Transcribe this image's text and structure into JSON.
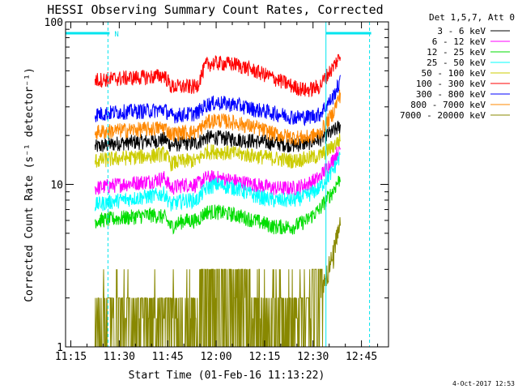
{
  "chart_data": {
    "type": "line",
    "title": "HESSI Observing Summary Count Rates, Corrected",
    "xlabel": "Start Time (01-Feb-16 11:13:22)",
    "ylabel": "Corrected Count Rate (s⁻¹ detector⁻¹)",
    "x_ticks": [
      "11:15",
      "11:30",
      "11:45",
      "12:00",
      "12:15",
      "12:30",
      "12:45"
    ],
    "x_tick_minutes": [
      15,
      30,
      45,
      60,
      75,
      90,
      105
    ],
    "xlim_minutes": [
      13.37,
      113.37
    ],
    "y_scale": "log",
    "ylim": [
      1,
      100
    ],
    "y_ticks": [
      1,
      10,
      100
    ],
    "legend_title": "Det 1,5,7, Att 0",
    "legend_position": "right",
    "flag_label": "N",
    "flags": [
      {
        "segments": [
          [
            13.37,
            27.0
          ],
          [
            94.0,
            108.0
          ]
        ]
      }
    ],
    "eclipse_marks_minutes": [
      26.5,
      94.0,
      107.5
    ],
    "footer_date": "4-Oct-2017 12:53",
    "series": [
      {
        "name": "3 - 6 keV",
        "color": "#000000",
        "x": [
          22.5,
          30,
          40,
          44,
          46,
          50,
          54,
          57,
          60,
          66,
          72,
          78,
          84,
          88,
          92,
          96,
          98.5
        ],
        "y": [
          17,
          18,
          18.5,
          19,
          17.5,
          18,
          18,
          19.5,
          19.5,
          19,
          18.5,
          18,
          17.5,
          18,
          19,
          21,
          23
        ]
      },
      {
        "name": "6 - 12 keV",
        "color": "#ff00ff",
        "x": [
          22.5,
          30,
          40,
          44,
          46,
          50,
          54,
          57,
          60,
          66,
          72,
          78,
          84,
          88,
          92,
          96,
          98.5
        ],
        "y": [
          9.5,
          10,
          10.5,
          11,
          9.5,
          10,
          10,
          11,
          11,
          10.5,
          10,
          9.5,
          9.5,
          10,
          11,
          14,
          17
        ]
      },
      {
        "name": "12 - 25 keV",
        "color": "#00dd00",
        "x": [
          22.5,
          30,
          40,
          44,
          46,
          50,
          54,
          57,
          60,
          66,
          72,
          78,
          84,
          88,
          92,
          96,
          98.5
        ],
        "y": [
          6,
          6.2,
          6.5,
          6.3,
          5.5,
          6,
          6,
          6.8,
          6.8,
          6.5,
          6,
          5.5,
          5.5,
          6,
          7,
          9,
          11
        ]
      },
      {
        "name": "25 - 50 keV",
        "color": "#00ffff",
        "x": [
          22.5,
          30,
          40,
          44,
          46,
          50,
          54,
          57,
          60,
          66,
          72,
          78,
          84,
          88,
          92,
          96,
          98.5
        ],
        "y": [
          7.5,
          8,
          8.5,
          8.8,
          7.5,
          8,
          8,
          9.5,
          10,
          9.5,
          8.5,
          8,
          8,
          8.5,
          9.5,
          12,
          15
        ]
      },
      {
        "name": "50 - 100 keV",
        "color": "#cccc00",
        "x": [
          22.5,
          30,
          40,
          44,
          46,
          50,
          54,
          57,
          60,
          66,
          72,
          78,
          84,
          88,
          92,
          96,
          98.5
        ],
        "y": [
          14,
          14.5,
          15,
          15.5,
          13.5,
          14,
          14,
          16,
          16,
          15.5,
          15,
          14.5,
          14,
          14.5,
          15,
          17,
          19
        ]
      },
      {
        "name": "100 - 300 keV",
        "color": "#ff0000",
        "x": [
          22.5,
          30,
          40,
          44,
          46,
          50,
          54,
          57,
          60,
          66,
          72,
          78,
          84,
          88,
          92,
          96,
          98.5
        ],
        "y": [
          44,
          45,
          46,
          47,
          40,
          40,
          40,
          55,
          56,
          55,
          50,
          45,
          40,
          38,
          40,
          52,
          62
        ]
      },
      {
        "name": "300 - 800 keV",
        "color": "#0000ff",
        "x": [
          22.5,
          30,
          40,
          44,
          46,
          50,
          54,
          57,
          60,
          66,
          72,
          78,
          84,
          88,
          92,
          96,
          98.5
        ],
        "y": [
          27,
          28,
          28.5,
          29,
          26.5,
          27,
          27.5,
          31,
          32,
          31,
          29,
          27.5,
          26,
          26,
          27,
          34,
          43
        ]
      },
      {
        "name": "800 - 7000 keV",
        "color": "#ff8800",
        "x": [
          22.5,
          30,
          40,
          44,
          46,
          50,
          54,
          57,
          60,
          66,
          72,
          78,
          84,
          88,
          92,
          96,
          98.5
        ],
        "y": [
          21,
          21.5,
          22,
          22.5,
          20.5,
          21,
          21,
          24,
          25,
          24,
          22.5,
          20.5,
          19.5,
          19.5,
          20.5,
          27,
          36
        ]
      },
      {
        "name": "7000 - 20000 keV",
        "color": "#888800",
        "x": [
          22.5,
          30,
          40,
          44,
          46,
          50,
          54,
          57,
          60,
          66,
          72,
          78,
          84,
          88,
          92,
          96,
          98.5
        ],
        "y": [
          1.6,
          1.6,
          1.6,
          1.6,
          1.6,
          1.6,
          1.8,
          2.2,
          2.2,
          2.2,
          1.8,
          1.6,
          1.6,
          1.7,
          2.2,
          3.4,
          5.5
        ]
      }
    ]
  }
}
